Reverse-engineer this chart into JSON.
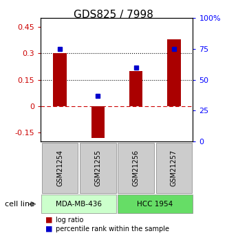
{
  "title": "GDS825 / 7998",
  "samples": [
    "GSM21254",
    "GSM21255",
    "GSM21256",
    "GSM21257"
  ],
  "log_ratio": [
    0.3,
    -0.18,
    0.2,
    0.38
  ],
  "percentile_rank": [
    0.75,
    0.37,
    0.6,
    0.75
  ],
  "cell_lines": [
    {
      "label": "MDA-MB-436",
      "samples": [
        0,
        1
      ],
      "color": "#ccffcc"
    },
    {
      "label": "HCC 1954",
      "samples": [
        2,
        3
      ],
      "color": "#66dd66"
    }
  ],
  "ylim_left": [
    -0.2,
    0.5
  ],
  "ylim_right": [
    0.0,
    1.0
  ],
  "yticks_left": [
    -0.15,
    0.0,
    0.15,
    0.3,
    0.45
  ],
  "yticks_right": [
    0.0,
    0.25,
    0.5,
    0.75,
    1.0
  ],
  "ytick_labels_right": [
    "0",
    "25",
    "50",
    "75",
    "100%"
  ],
  "ytick_labels_left": [
    "-0.15",
    "0",
    "0.15",
    "0.3",
    "0.45"
  ],
  "hlines_black": [
    0.15,
    0.3
  ],
  "hline_red": 0.0,
  "bar_color": "#aa0000",
  "square_color": "#0000cc",
  "bar_width": 0.35,
  "legend_red_label": "log ratio",
  "legend_blue_label": "percentile rank within the sample",
  "cell_line_label": "cell line",
  "sample_box_color": "#cccccc"
}
